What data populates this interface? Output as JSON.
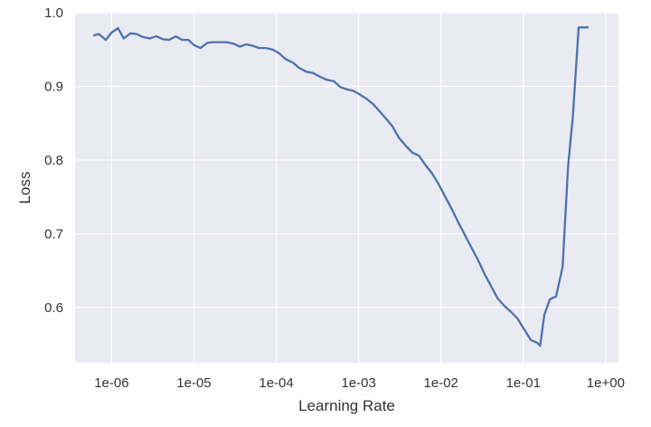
{
  "chart_data": {
    "type": "line",
    "title": "",
    "xlabel": "Learning Rate",
    "ylabel": "Loss",
    "x_scale": "log",
    "xlim": [
      3.6e-07,
      1.43
    ],
    "ylim": [
      0.525,
      1.0
    ],
    "grid": true,
    "colors": {
      "background": "#EAEAF2",
      "grid": "#FFFFFF",
      "line": "#4C72B0"
    },
    "x_ticks": [
      {
        "value": 1e-06,
        "label": "1e-06"
      },
      {
        "value": 1e-05,
        "label": "1e-05"
      },
      {
        "value": 0.0001,
        "label": "1e-04"
      },
      {
        "value": 0.001,
        "label": "1e-03"
      },
      {
        "value": 0.01,
        "label": "1e-02"
      },
      {
        "value": 0.1,
        "label": "1e-01"
      },
      {
        "value": 1,
        "label": "1e+00"
      }
    ],
    "y_ticks": [
      {
        "value": 0.6,
        "label": "0.6"
      },
      {
        "value": 0.7,
        "label": "0.7"
      },
      {
        "value": 0.8,
        "label": "0.8"
      },
      {
        "value": 0.9,
        "label": "0.9"
      },
      {
        "value": 1.0,
        "label": "1.0"
      }
    ],
    "series": [
      {
        "x": [
          6e-07,
          7e-07,
          8.5e-07,
          1e-06,
          1.2e-06,
          1.4e-06,
          1.7e-06,
          2e-06,
          2.4e-06,
          2.9e-06,
          3.5e-06,
          4.2e-06,
          5e-06,
          6e-06,
          7.2e-06,
          8.6e-06,
          1e-05,
          1.2e-05,
          1.45e-05,
          1.7e-05,
          2.1e-05,
          2.5e-05,
          3e-05,
          3.6e-05,
          4.3e-05,
          5.2e-05,
          6.2e-05,
          7.5e-05,
          9e-05,
          0.000108,
          0.00013,
          0.00016,
          0.00019,
          0.00023,
          0.00028,
          0.00034,
          0.00041,
          0.0005,
          0.0006,
          0.00072,
          0.00086,
          0.001,
          0.00125,
          0.0015,
          0.0018,
          0.0022,
          0.0026,
          0.0031,
          0.0037,
          0.0045,
          0.0054,
          0.0065,
          0.0078,
          0.0094,
          0.0113,
          0.0136,
          0.0163,
          0.0196,
          0.0235,
          0.0283,
          0.034,
          0.041,
          0.049,
          0.059,
          0.071,
          0.085,
          0.103,
          0.123,
          0.148,
          0.16,
          0.18,
          0.21,
          0.25,
          0.3,
          0.35,
          0.4,
          0.47,
          0.55,
          0.62
        ],
        "y": [
          0.969,
          0.971,
          0.963,
          0.973,
          0.979,
          0.965,
          0.972,
          0.971,
          0.967,
          0.965,
          0.968,
          0.964,
          0.963,
          0.968,
          0.963,
          0.963,
          0.956,
          0.952,
          0.959,
          0.96,
          0.96,
          0.96,
          0.958,
          0.954,
          0.957,
          0.955,
          0.952,
          0.952,
          0.95,
          0.945,
          0.937,
          0.932,
          0.925,
          0.92,
          0.918,
          0.913,
          0.909,
          0.907,
          0.899,
          0.896,
          0.894,
          0.89,
          0.883,
          0.876,
          0.866,
          0.855,
          0.845,
          0.83,
          0.82,
          0.81,
          0.806,
          0.793,
          0.782,
          0.767,
          0.75,
          0.733,
          0.715,
          0.698,
          0.681,
          0.664,
          0.645,
          0.628,
          0.612,
          0.602,
          0.594,
          0.585,
          0.57,
          0.556,
          0.552,
          0.548,
          0.59,
          0.611,
          0.615,
          0.655,
          0.792,
          0.86,
          0.98,
          0.98,
          0.98
        ]
      }
    ]
  }
}
